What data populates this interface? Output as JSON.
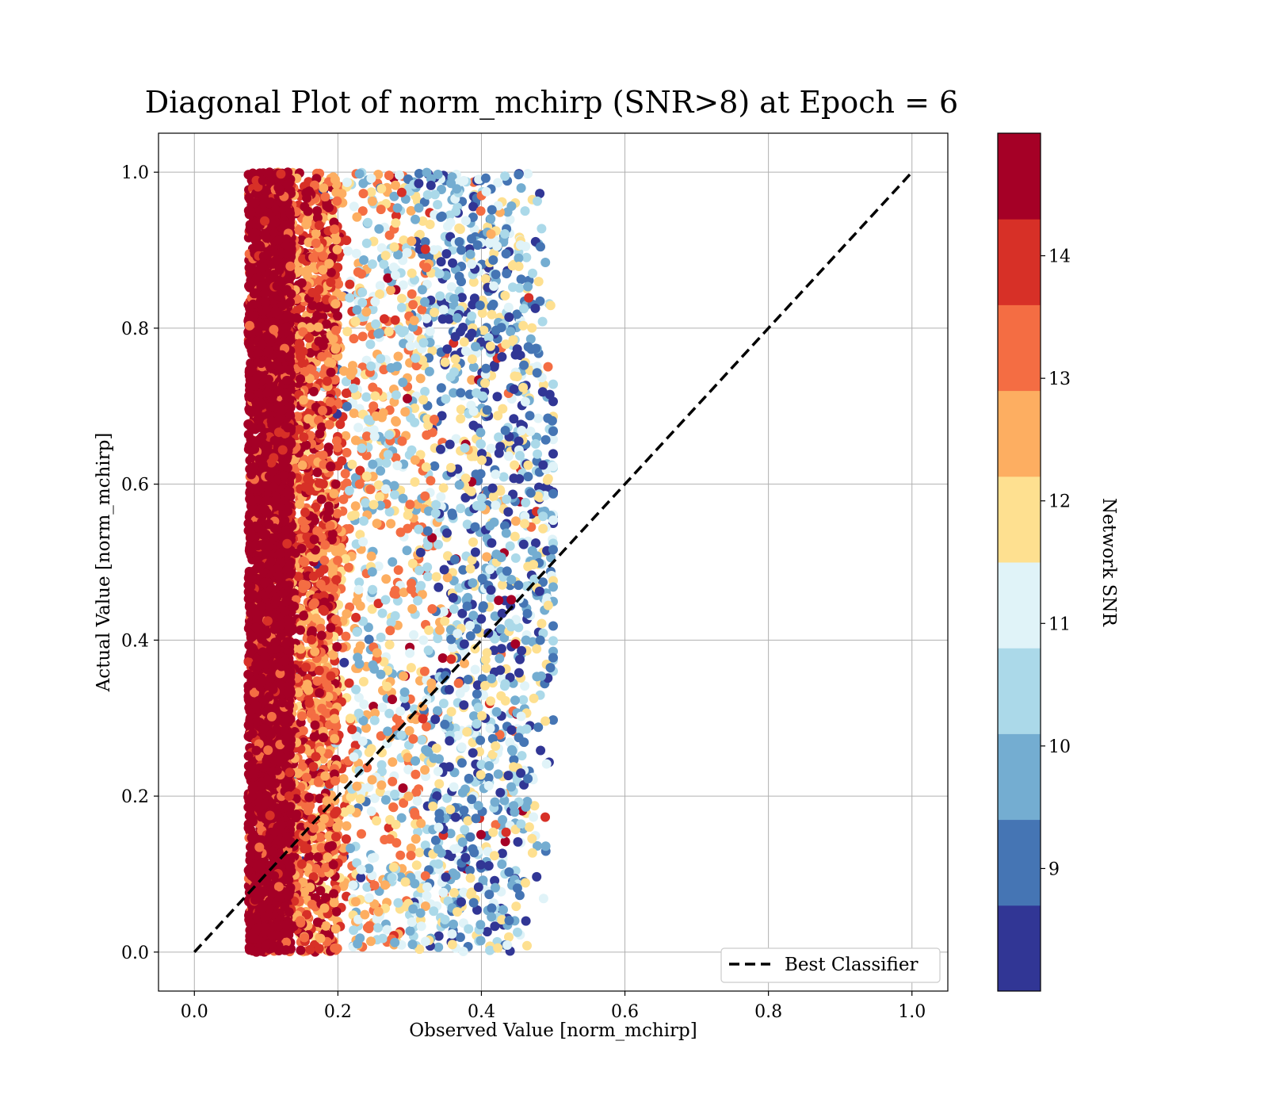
{
  "chart_data": {
    "type": "scatter",
    "title": "Diagonal Plot of norm_mchirp (SNR>8) at Epoch = 6",
    "xlabel": "Observed Value [norm_mchirp]",
    "ylabel": "Actual Value [norm_mchirp]",
    "xlim": [
      -0.05,
      1.05
    ],
    "ylim": [
      -0.05,
      1.05
    ],
    "x_ticks": [
      "0.0",
      "0.2",
      "0.4",
      "0.6",
      "0.8",
      "1.0"
    ],
    "y_ticks": [
      "0.0",
      "0.2",
      "0.4",
      "0.6",
      "0.8",
      "1.0"
    ],
    "grid": true,
    "reference_line": {
      "label": "Best Classifier",
      "x": [
        0.0,
        1.0
      ],
      "y": [
        0.0,
        1.0
      ],
      "style": "dashed",
      "color": "#000000"
    },
    "legend": {
      "placement": "lower-right",
      "entries": [
        "Best Classifier"
      ]
    },
    "colorbar": {
      "label": "Network SNR",
      "range": [
        8,
        15
      ],
      "ticks": [
        "9",
        "10",
        "11",
        "12",
        "13",
        "14"
      ],
      "tick_values": [
        9,
        10,
        11,
        12,
        13,
        14
      ],
      "colors": [
        "#313695",
        "#4575b4",
        "#74add1",
        "#abd9e9",
        "#e0f3f8",
        "#fee090",
        "#fdae61",
        "#f46d43",
        "#d73027",
        "#a50026"
      ]
    },
    "points_description": {
      "x_range_observed": [
        0.07,
        0.5
      ],
      "y_range_actual": [
        0.0,
        1.0
      ],
      "high_snr_cluster_x": [
        0.07,
        0.14
      ]
    }
  }
}
